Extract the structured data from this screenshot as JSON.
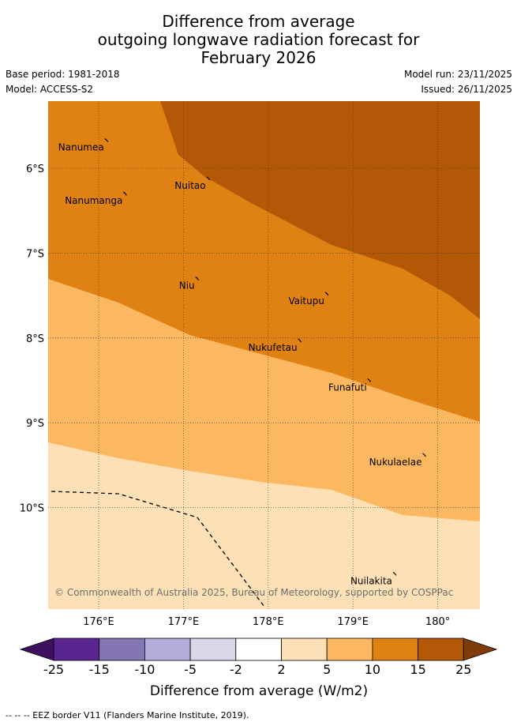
{
  "header": {
    "title_line1": "Difference from average",
    "title_line2": "outgoing longwave radiation forecast for",
    "title_line3": "February 2026",
    "base_period": "Base period: 1981-2018",
    "model": "Model: ACCESS-S2",
    "model_run": "Model run: 23/11/2025",
    "issued": "Issued: 26/11/2025"
  },
  "map": {
    "lat_labels": [
      "6°S",
      "7°S",
      "8°S",
      "9°S",
      "10°S"
    ],
    "lon_labels": [
      "176°E",
      "177°E",
      "178°E",
      "179°E",
      "180°"
    ],
    "islands": [
      {
        "name": "Nanumea",
        "lon": 176.1,
        "lat": -5.67
      },
      {
        "name": "Nuitao",
        "lon": 177.3,
        "lat": -6.12
      },
      {
        "name": "Nanumanga",
        "lon": 176.32,
        "lat": -6.3
      },
      {
        "name": "Niu",
        "lon": 177.17,
        "lat": -7.3
      },
      {
        "name": "Vaitupu",
        "lon": 178.7,
        "lat": -7.48
      },
      {
        "name": "Nukufetau",
        "lon": 178.38,
        "lat": -8.03
      },
      {
        "name": "Funafuti",
        "lon": 179.2,
        "lat": -8.5
      },
      {
        "name": "Nukulaelae",
        "lon": 179.85,
        "lat": -9.38
      },
      {
        "name": "Nuilakita",
        "lon": 179.5,
        "lat": -10.78
      }
    ],
    "copyright": "© Commonwealth of Australia 2025, Bureau of Meteorology, supported by COSPPac"
  },
  "colorbar": {
    "ticks": [
      "-25",
      "-15",
      "-10",
      "-5",
      "-2",
      "2",
      "5",
      "10",
      "15",
      "25"
    ],
    "colors": [
      "#5a2590",
      "#8476b2",
      "#b3addb",
      "#d8d8ea",
      "#ffffff",
      "#fde0b6",
      "#fbb860",
      "#e08213",
      "#b35806"
    ],
    "low_extend_color": "#3e0f5e",
    "high_extend_color": "#7f3b08",
    "label": "Difference from average (W/m2)"
  },
  "legend": {
    "eez_text": "--  --  -- EEZ border V11 (Flanders Marine Institute, 2019)."
  }
}
